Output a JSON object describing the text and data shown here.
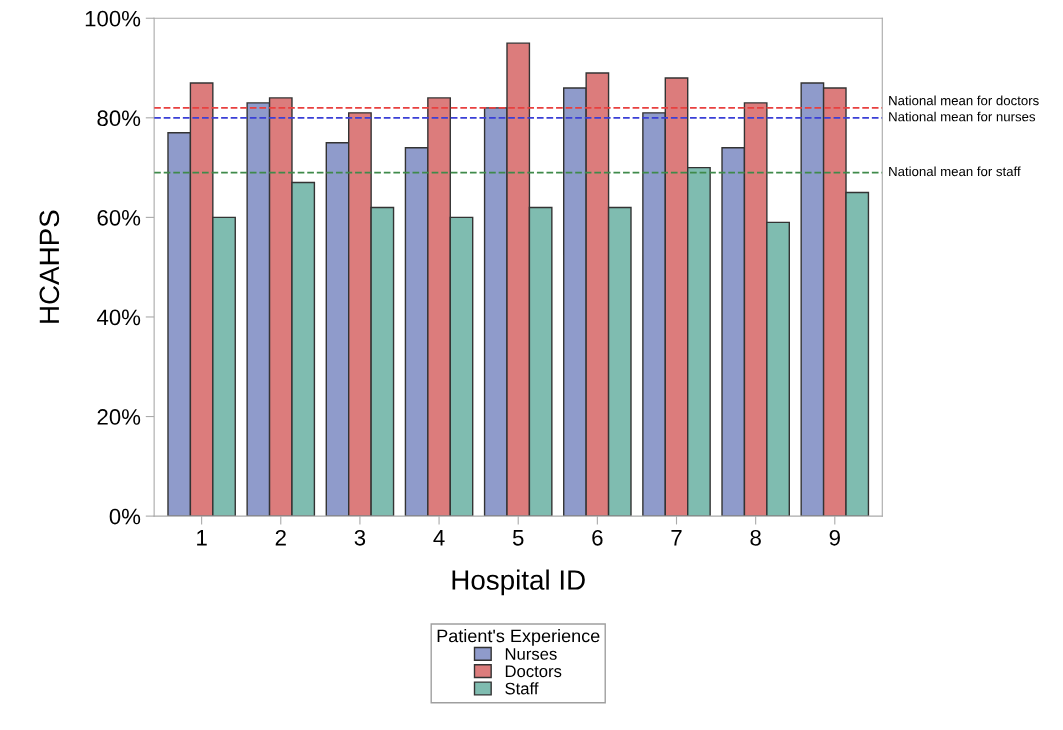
{
  "chart_data": {
    "type": "bar",
    "xlabel": "Hospital ID",
    "ylabel": "HCAHPS",
    "legend_title": "Patient's Experience",
    "legend": "bottom",
    "categories": [
      "1",
      "2",
      "3",
      "4",
      "5",
      "6",
      "7",
      "8",
      "9"
    ],
    "series": [
      {
        "name": "Nurses",
        "color": "#8f9bcb",
        "values": [
          77,
          83,
          75,
          74,
          82,
          86,
          81,
          74,
          87
        ]
      },
      {
        "name": "Doctors",
        "color": "#dc7c7c",
        "values": [
          87,
          84,
          81,
          84,
          95,
          89,
          88,
          83,
          86
        ]
      },
      {
        "name": "Staff",
        "color": "#7fbcb0",
        "values": [
          60,
          67,
          62,
          60,
          62,
          62,
          70,
          59,
          65
        ]
      }
    ],
    "ylim": [
      0,
      100
    ],
    "yticks": [
      {
        "value": 0,
        "label": "0%"
      },
      {
        "value": 20,
        "label": "20%"
      },
      {
        "value": 40,
        "label": "40%"
      },
      {
        "value": 60,
        "label": "60%"
      },
      {
        "value": 80,
        "label": "80%"
      },
      {
        "value": 100,
        "label": "100%"
      }
    ],
    "ref_lines": [
      {
        "axis": "y",
        "value": 82,
        "label": "National mean for doctors",
        "color": "#e8403f",
        "line_style": "dashed"
      },
      {
        "axis": "y",
        "value": 80,
        "label": "National mean for nurses",
        "color": "#3a3fd6",
        "line_style": "dashed"
      },
      {
        "axis": "y",
        "value": 69,
        "label": "National mean for staff",
        "color": "#3f8a4a",
        "line_style": "dashed"
      }
    ],
    "grid": false
  }
}
